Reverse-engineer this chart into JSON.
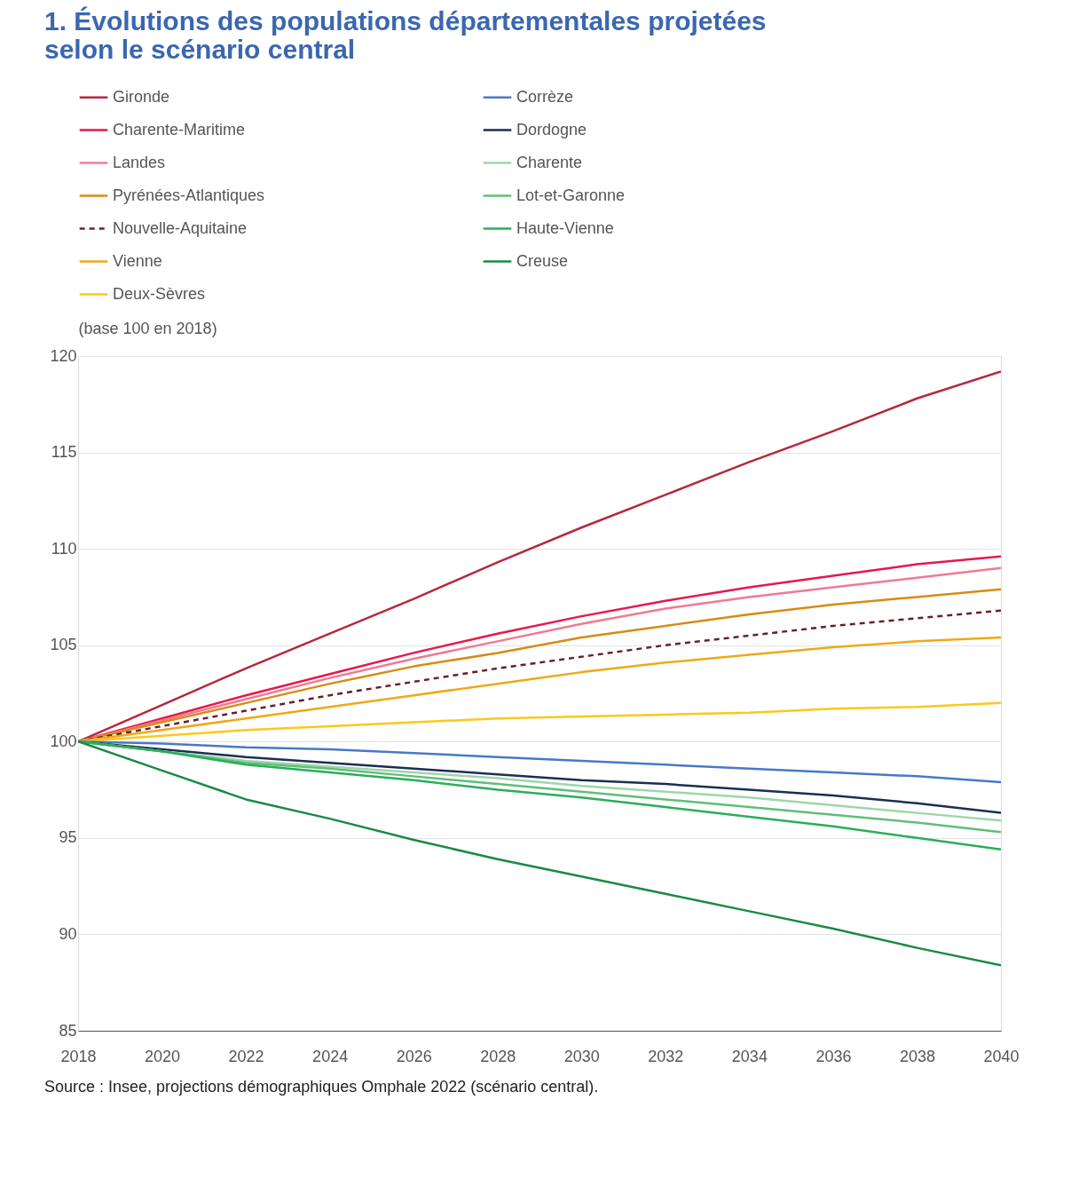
{
  "chart_data": {
    "type": "line",
    "title": "1. Évolutions des populations départementales projetées selon le scénario central",
    "ylabel": "(base 100 en 2018)",
    "annotations": [
      "Source : Insee, projections démographiques Omphale 2022 (scénario central)."
    ],
    "x": [
      2018,
      2020,
      2022,
      2024,
      2026,
      2028,
      2030,
      2032,
      2034,
      2036,
      2038,
      2040
    ],
    "xlim": [
      2018,
      2040
    ],
    "xticks": [
      2018,
      2020,
      2022,
      2024,
      2026,
      2028,
      2030,
      2032,
      2034,
      2036,
      2038,
      2040
    ],
    "ylim": [
      85,
      120
    ],
    "yticks": [
      85,
      90,
      95,
      100,
      105,
      110,
      115,
      120
    ],
    "grid": "y",
    "legend": "top",
    "line_style": "solid",
    "series": [
      {
        "name": "Gironde",
        "color": "#b5293f",
        "values": [
          100,
          101.9,
          103.8,
          105.6,
          107.4,
          109.3,
          111.1,
          112.8,
          114.5,
          116.1,
          117.8,
          119.2
        ]
      },
      {
        "name": "Charente-Maritime",
        "color": "#e8174b",
        "values": [
          100,
          101.2,
          102.4,
          103.5,
          104.6,
          105.6,
          106.5,
          107.3,
          108.0,
          108.6,
          109.2,
          109.6
        ]
      },
      {
        "name": "Landes",
        "color": "#f07a91",
        "values": [
          100,
          101.1,
          102.2,
          103.3,
          104.3,
          105.2,
          106.1,
          106.9,
          107.5,
          108.0,
          108.5,
          109.0
        ]
      },
      {
        "name": "Pyrénées-Atlantiques",
        "color": "#d98b12",
        "values": [
          100,
          101.0,
          102.0,
          103.0,
          103.9,
          104.6,
          105.4,
          106.0,
          106.6,
          107.1,
          107.5,
          107.9
        ]
      },
      {
        "name": "Nouvelle-Aquitaine",
        "color": "#6b1f2a",
        "line_style": "dashed",
        "values": [
          100,
          100.8,
          101.6,
          102.4,
          103.1,
          103.8,
          104.4,
          105.0,
          105.5,
          106.0,
          106.4,
          106.8
        ]
      },
      {
        "name": "Vienne",
        "color": "#f0a818",
        "values": [
          100,
          100.6,
          101.2,
          101.8,
          102.4,
          103.0,
          103.6,
          104.1,
          104.5,
          104.9,
          105.2,
          105.4
        ]
      },
      {
        "name": "Deux-Sèvres",
        "color": "#fcc81a",
        "values": [
          100,
          100.3,
          100.6,
          100.8,
          101.0,
          101.2,
          101.3,
          101.4,
          101.5,
          101.7,
          101.8,
          102.0
        ]
      },
      {
        "name": "Corrèze",
        "color": "#4a78c8",
        "values": [
          100,
          99.9,
          99.7,
          99.6,
          99.4,
          99.2,
          99.0,
          98.8,
          98.6,
          98.4,
          98.2,
          97.9
        ]
      },
      {
        "name": "Dordogne",
        "color": "#1a2f55",
        "values": [
          100,
          99.6,
          99.2,
          98.9,
          98.6,
          98.3,
          98.0,
          97.8,
          97.5,
          97.2,
          96.8,
          96.3
        ]
      },
      {
        "name": "Charente",
        "color": "#9fd6a8",
        "values": [
          100,
          99.5,
          99.0,
          98.7,
          98.4,
          98.1,
          97.7,
          97.4,
          97.1,
          96.7,
          96.3,
          95.9
        ]
      },
      {
        "name": "Lot-et-Garonne",
        "color": "#5fbf7a",
        "values": [
          100,
          99.5,
          98.9,
          98.6,
          98.2,
          97.8,
          97.4,
          97.0,
          96.6,
          96.2,
          95.8,
          95.3
        ]
      },
      {
        "name": "Haute-Vienne",
        "color": "#2aae5a",
        "values": [
          100,
          99.5,
          98.8,
          98.4,
          98.0,
          97.5,
          97.1,
          96.6,
          96.1,
          95.6,
          95.0,
          94.4
        ]
      },
      {
        "name": "Creuse",
        "color": "#1a8a45",
        "values": [
          100,
          98.5,
          97.0,
          96.0,
          94.9,
          93.9,
          93.0,
          92.1,
          91.2,
          90.3,
          89.3,
          88.4
        ]
      }
    ]
  }
}
